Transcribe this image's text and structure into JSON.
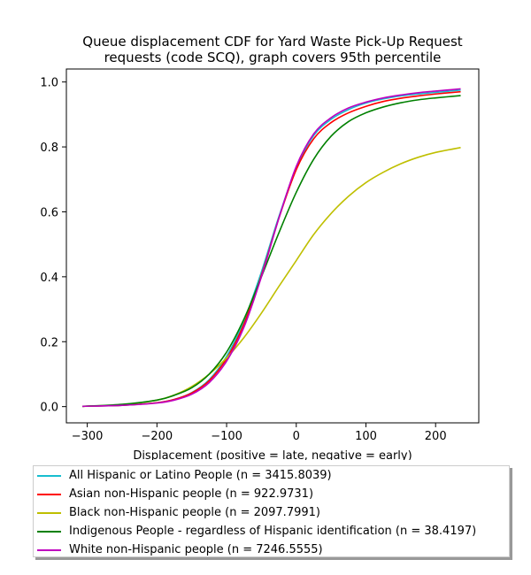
{
  "chart_data": {
    "type": "line",
    "title_lines": [
      "Queue displacement CDF for Yard Waste Pick-Up Request",
      "requests (code SCQ), graph covers 95th percentile"
    ],
    "xlabel": "Displacement (positive = late, negative = early)",
    "ylabel": "",
    "xlim": [
      -330,
      262
    ],
    "ylim": [
      -0.05,
      1.04
    ],
    "x_ticks": [
      -300,
      -200,
      -100,
      0,
      100,
      200
    ],
    "x_tick_labels": [
      "−300",
      "−200",
      "−100",
      "0",
      "100",
      "200"
    ],
    "y_ticks": [
      0.0,
      0.2,
      0.4,
      0.6,
      0.8,
      1.0
    ],
    "y_tick_labels": [
      "0.0",
      "0.2",
      "0.4",
      "0.6",
      "0.8",
      "1.0"
    ],
    "grid": false,
    "legend_position": "below",
    "series": [
      {
        "name": "All Hispanic or Latino People (n = 3415.8039)",
        "color": "#17becf",
        "x": [
          -307,
          -250,
          -200,
          -175,
          -150,
          -125,
          -100,
          -75,
          -50,
          -25,
          0,
          25,
          50,
          75,
          100,
          125,
          150,
          175,
          200,
          236
        ],
        "y": [
          0.001,
          0.004,
          0.012,
          0.022,
          0.043,
          0.083,
          0.155,
          0.265,
          0.415,
          0.585,
          0.735,
          0.835,
          0.885,
          0.915,
          0.935,
          0.948,
          0.957,
          0.963,
          0.968,
          0.975
        ]
      },
      {
        "name": "Asian non-Hispanic people (n = 922.9731)",
        "color": "#ff0000",
        "x": [
          -307,
          -250,
          -200,
          -175,
          -150,
          -125,
          -100,
          -75,
          -50,
          -25,
          0,
          25,
          50,
          75,
          100,
          125,
          150,
          175,
          200,
          236
        ],
        "y": [
          0.001,
          0.004,
          0.012,
          0.022,
          0.042,
          0.08,
          0.148,
          0.255,
          0.405,
          0.58,
          0.73,
          0.825,
          0.875,
          0.905,
          0.925,
          0.94,
          0.95,
          0.957,
          0.963,
          0.97
        ]
      },
      {
        "name": "Black non-Hispanic people (n = 2097.7991)",
        "color": "#bfbf00",
        "x": [
          -307,
          -250,
          -200,
          -175,
          -150,
          -125,
          -100,
          -75,
          -50,
          -25,
          0,
          25,
          50,
          75,
          100,
          125,
          150,
          175,
          200,
          236
        ],
        "y": [
          0.001,
          0.006,
          0.02,
          0.036,
          0.062,
          0.1,
          0.15,
          0.213,
          0.288,
          0.37,
          0.45,
          0.53,
          0.595,
          0.648,
          0.69,
          0.722,
          0.748,
          0.768,
          0.783,
          0.798
        ]
      },
      {
        "name": "Indigenous People - regardless of Hispanic identification (n = 38.4197)",
        "color": "#008000",
        "x": [
          -307,
          -250,
          -200,
          -175,
          -150,
          -125,
          -100,
          -75,
          -50,
          -25,
          0,
          25,
          50,
          75,
          100,
          125,
          150,
          175,
          200,
          236
        ],
        "y": [
          0.001,
          0.007,
          0.02,
          0.035,
          0.058,
          0.1,
          0.168,
          0.27,
          0.4,
          0.535,
          0.66,
          0.762,
          0.833,
          0.878,
          0.905,
          0.923,
          0.936,
          0.945,
          0.951,
          0.958
        ]
      },
      {
        "name": "White non-Hispanic people (n = 7246.5555)",
        "color": "#bf00bf",
        "x": [
          -307,
          -250,
          -200,
          -175,
          -150,
          -125,
          -100,
          -75,
          -50,
          -25,
          0,
          25,
          50,
          75,
          100,
          125,
          150,
          175,
          200,
          236
        ],
        "y": [
          0.001,
          0.004,
          0.011,
          0.02,
          0.038,
          0.074,
          0.14,
          0.245,
          0.4,
          0.58,
          0.74,
          0.84,
          0.89,
          0.92,
          0.938,
          0.951,
          0.96,
          0.967,
          0.972,
          0.979
        ]
      }
    ]
  }
}
